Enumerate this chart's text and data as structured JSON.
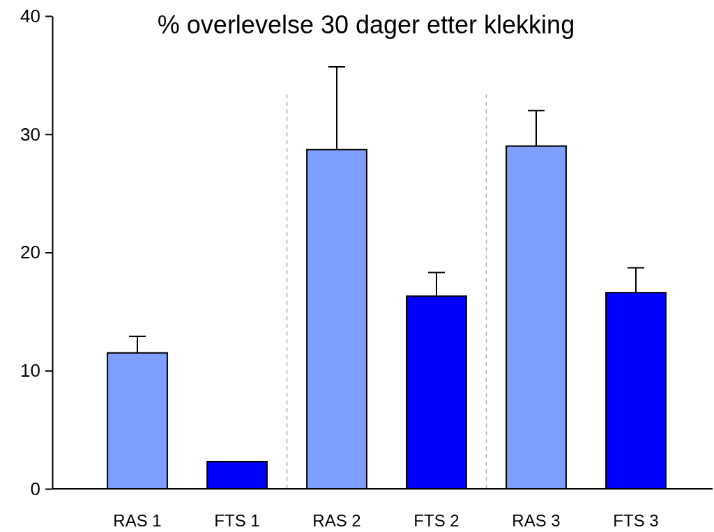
{
  "chart_data": {
    "type": "bar",
    "title": "% overlevelse 30 dager etter klekking",
    "categories": [
      "RAS 1",
      "FTS 1",
      "RAS 2",
      "FTS 2",
      "RAS 3",
      "FTS 3"
    ],
    "values": [
      11.5,
      2.3,
      28.7,
      16.3,
      29.0,
      16.6
    ],
    "colors": [
      "#7f9fff",
      "#0000ff",
      "#7f9fff",
      "#0000ff",
      "#7f9fff",
      "#0000ff"
    ],
    "errors": [
      [
        11.5,
        12.9
      ],
      null,
      [
        28.7,
        35.7
      ],
      [
        16.3,
        18.3
      ],
      [
        29.0,
        32.0
      ],
      [
        16.6,
        18.7
      ]
    ],
    "ylim": [
      0,
      40
    ],
    "yticks": [
      0,
      10,
      20,
      30,
      40
    ],
    "grid": false
  }
}
